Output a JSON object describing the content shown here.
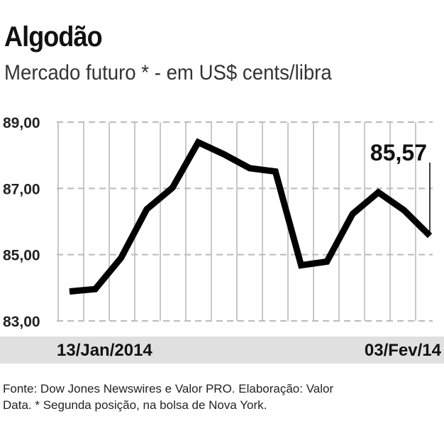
{
  "header": {
    "title": "Algodão",
    "subtitle": "Mercado futuro * - em US$ cents/libra"
  },
  "chart_data": {
    "type": "line",
    "title": "Algodão",
    "subtitle": "Mercado futuro * - em US$ cents/libra",
    "ylabel": "US$ cents/libra",
    "ylim": [
      83,
      89
    ],
    "yticks": [
      89,
      87,
      85,
      83
    ],
    "ytick_labels": [
      "89,00",
      "87,00",
      "85,00",
      "83,00"
    ],
    "x_labels": {
      "start": "13/Jan/2014",
      "end": "03/Fev/14"
    },
    "values": [
      83.89,
      83.96,
      84.9,
      86.37,
      87.02,
      88.39,
      88.03,
      87.61,
      87.51,
      84.68,
      84.79,
      86.23,
      86.88,
      86.34,
      85.57
    ],
    "annotation": "85,57",
    "grid": true
  },
  "footer": {
    "line1": "Fonte: Dow Jones Newswires e Valor PRO. Elaboração: Valor",
    "line2": "Data. * Segunda posição, na bolsa de Nova York."
  }
}
